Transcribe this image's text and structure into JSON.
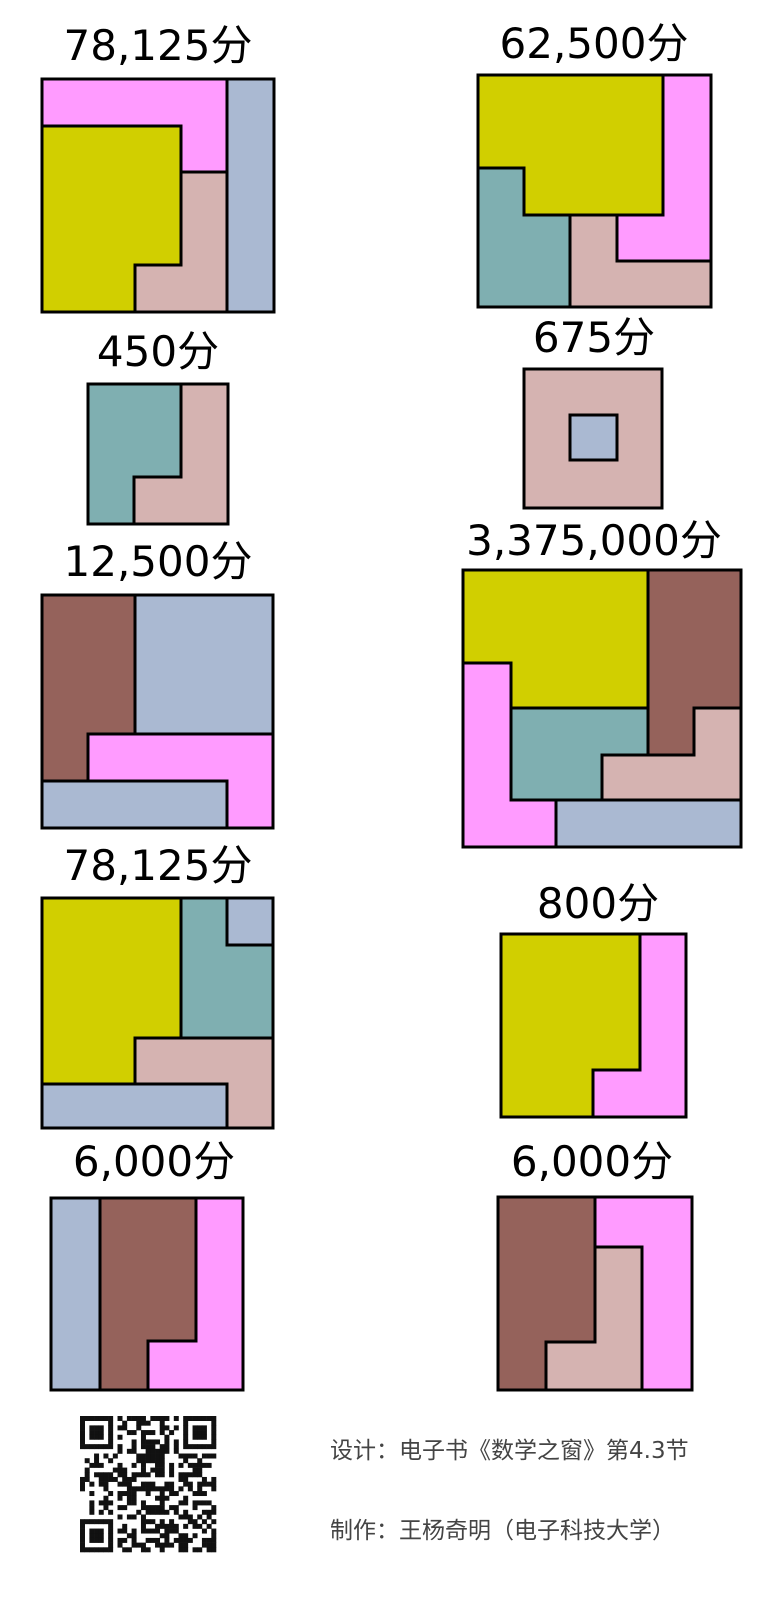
{
  "colors": {
    "Y": "#d1cf00",
    "P": "#ff9bff",
    "B": "#aab9d2",
    "R": "#d5b3b1",
    "T": "#7fafb1",
    "M": "#95625b"
  },
  "puzzles": [
    {
      "score": "78,125分"
    },
    {
      "score": "62,500分"
    },
    {
      "score": "450分"
    },
    {
      "score": "675分"
    },
    {
      "score": "12,500分"
    },
    {
      "score": "3,375,000分"
    },
    {
      "score": "78,125分"
    },
    {
      "score": "800分"
    },
    {
      "score": "6,000分"
    },
    {
      "score": "6,000分"
    }
  ],
  "credits": {
    "design": "设计：电子书《数学之窗》第4.3节",
    "author": "制作：王杨奇明（电子科技大学）"
  },
  "qr_code": {
    "icon": "qr-code-icon"
  }
}
